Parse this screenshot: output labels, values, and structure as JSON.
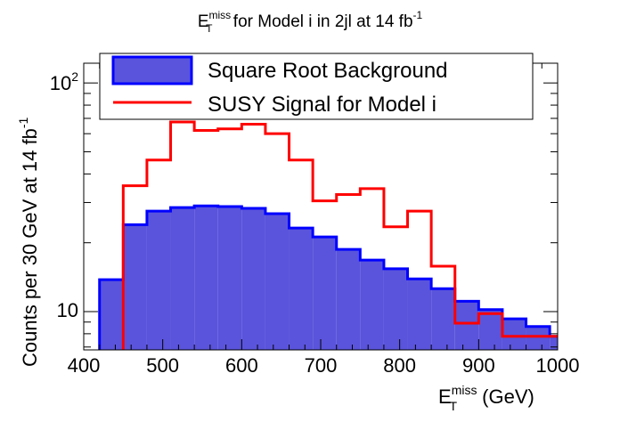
{
  "title": {
    "E": "E",
    "sup": "miss",
    "sub": "T",
    "mid": " for Model i in 2jl at 14 fb",
    "exp": "-1"
  },
  "y_axis": {
    "label_main": "Counts per 30 GeV at 14 fb",
    "label_exp": "-1",
    "tick_labels": {
      "t10": "10",
      "t100_base": "10",
      "t100_exp": "2"
    }
  },
  "x_axis": {
    "E": "E",
    "sup": "miss",
    "sub": "T",
    "unit": " (GeV)"
  },
  "legend": {
    "background_label": "Square Root Background",
    "signal_label": "SUSY Signal for Model i"
  },
  "colors": {
    "background_fill": "#5a54dc",
    "background_line": "#0000ff",
    "signal_line": "#ff0000"
  },
  "chart_data": {
    "type": "histogram",
    "bin_width": 30,
    "x_range": [
      400,
      1000
    ],
    "y_scale": "log",
    "y_range": [
      6.8,
      122
    ],
    "x_ticks": [
      400,
      500,
      600,
      700,
      800,
      900,
      1000
    ],
    "series": [
      {
        "name": "Square Root Background",
        "style": "filled",
        "bins": [
          {
            "x0": 420,
            "x1": 450,
            "y": 13.8
          },
          {
            "x0": 450,
            "x1": 480,
            "y": 24
          },
          {
            "x0": 480,
            "x1": 510,
            "y": 27.5
          },
          {
            "x0": 510,
            "x1": 540,
            "y": 28.5
          },
          {
            "x0": 540,
            "x1": 570,
            "y": 29
          },
          {
            "x0": 570,
            "x1": 600,
            "y": 28.8
          },
          {
            "x0": 600,
            "x1": 630,
            "y": 28.3
          },
          {
            "x0": 630,
            "x1": 660,
            "y": 26.8
          },
          {
            "x0": 660,
            "x1": 690,
            "y": 23.2
          },
          {
            "x0": 690,
            "x1": 720,
            "y": 21.2
          },
          {
            "x0": 720,
            "x1": 750,
            "y": 18.7
          },
          {
            "x0": 750,
            "x1": 780,
            "y": 16.8
          },
          {
            "x0": 780,
            "x1": 810,
            "y": 15.4
          },
          {
            "x0": 810,
            "x1": 840,
            "y": 13.9
          },
          {
            "x0": 840,
            "x1": 870,
            "y": 12.6
          },
          {
            "x0": 870,
            "x1": 900,
            "y": 11.1
          },
          {
            "x0": 900,
            "x1": 930,
            "y": 10.2
          },
          {
            "x0": 930,
            "x1": 960,
            "y": 9.3
          },
          {
            "x0": 960,
            "x1": 990,
            "y": 8.6
          },
          {
            "x0": 990,
            "x1": 1000,
            "y": 7.8
          }
        ]
      },
      {
        "name": "SUSY Signal for Model i",
        "style": "line",
        "bins": [
          {
            "x0": 450,
            "x1": 480,
            "y": 35.5
          },
          {
            "x0": 480,
            "x1": 510,
            "y": 46
          },
          {
            "x0": 510,
            "x1": 540,
            "y": 67.5
          },
          {
            "x0": 540,
            "x1": 570,
            "y": 62
          },
          {
            "x0": 570,
            "x1": 600,
            "y": 63
          },
          {
            "x0": 600,
            "x1": 630,
            "y": 66
          },
          {
            "x0": 630,
            "x1": 660,
            "y": 60
          },
          {
            "x0": 660,
            "x1": 690,
            "y": 46
          },
          {
            "x0": 690,
            "x1": 720,
            "y": 30.5
          },
          {
            "x0": 720,
            "x1": 750,
            "y": 32.5
          },
          {
            "x0": 750,
            "x1": 780,
            "y": 34.5
          },
          {
            "x0": 780,
            "x1": 810,
            "y": 23.5
          },
          {
            "x0": 810,
            "x1": 840,
            "y": 27.5
          },
          {
            "x0": 840,
            "x1": 870,
            "y": 15.8
          },
          {
            "x0": 870,
            "x1": 900,
            "y": 8.9
          },
          {
            "x0": 900,
            "x1": 930,
            "y": 9.8
          },
          {
            "x0": 930,
            "x1": 1000,
            "y": 7.8
          }
        ]
      }
    ]
  }
}
